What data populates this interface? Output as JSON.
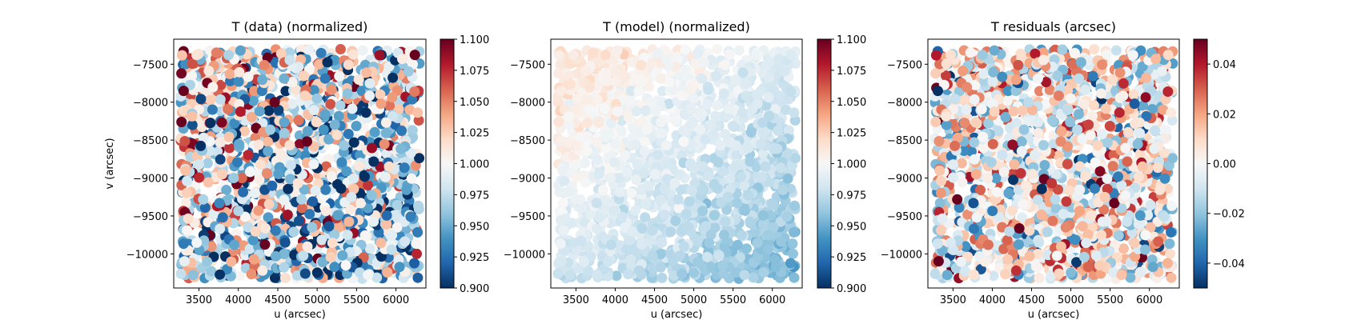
{
  "chart_data": [
    {
      "type": "scatter",
      "title": "T (data) (normalized)",
      "xlabel": "u (arcsec)",
      "ylabel": "v (arcsec)",
      "xlim": [
        3180,
        6380
      ],
      "ylim": [
        -10450,
        -7170
      ],
      "xticks": [
        3500,
        4000,
        4500,
        5000,
        5500,
        6000
      ],
      "yticks": [
        -7500,
        -8000,
        -8500,
        -9000,
        -9500,
        -10000
      ],
      "colorbar": {
        "cmap": "RdBu_r",
        "vmin": 0.9,
        "vmax": 1.1,
        "ticks": [
          "0.900",
          "0.925",
          "0.950",
          "0.975",
          "1.000",
          "1.025",
          "1.050",
          "1.075",
          "1.100"
        ]
      },
      "points": {
        "n": 1800,
        "x_range": [
          3270,
          6300
        ],
        "y_range": [
          -10330,
          -7300
        ],
        "field": "noisy",
        "pattern": "mean near 1.0 with strong scatter (most values saturate toward 0.90 or 1.10); slightly more red near top-left and more blue near bottom-right"
      }
    },
    {
      "type": "scatter",
      "title": "T (model) (normalized)",
      "xlabel": "u (arcsec)",
      "ylabel": "",
      "xlim": [
        3180,
        6380
      ],
      "ylim": [
        -10450,
        -7170
      ],
      "xticks": [
        3500,
        4000,
        4500,
        5000,
        5500,
        6000
      ],
      "yticks": [
        -7500,
        -8000,
        -8500,
        -9000,
        -9500,
        -10000
      ],
      "colorbar": {
        "cmap": "RdBu_r",
        "vmin": 0.9,
        "vmax": 1.1,
        "ticks": [
          "0.900",
          "0.925",
          "0.950",
          "0.975",
          "1.000",
          "1.025",
          "1.050",
          "1.075",
          "1.100"
        ]
      },
      "points": {
        "n": 1800,
        "x_range": [
          3270,
          6300
        ],
        "y_range": [
          -10330,
          -7300
        ],
        "field": "smooth",
        "pattern": "smooth gradient from about 1.04 at top-left to about 0.93 at bottom-right"
      }
    },
    {
      "type": "scatter",
      "title": "T residuals (arcsec)",
      "xlabel": "u (arcsec)",
      "ylabel": "",
      "xlim": [
        3180,
        6380
      ],
      "ylim": [
        -10450,
        -7170
      ],
      "xticks": [
        3500,
        4000,
        4500,
        5000,
        5500,
        6000
      ],
      "yticks": [
        -7500,
        -8000,
        -8500,
        -9000,
        -9500,
        -10000
      ],
      "colorbar": {
        "cmap": "RdBu_r",
        "vmin": -0.05,
        "vmax": 0.05,
        "ticks": [
          "−0.04",
          "−0.02",
          "0.00",
          "0.02",
          "0.04"
        ],
        "tick_values": [
          -0.04,
          -0.02,
          0.0,
          0.02,
          0.04
        ]
      },
      "points": {
        "n": 1800,
        "x_range": [
          3270,
          6300
        ],
        "y_range": [
          -10330,
          -7300
        ],
        "field": "residual",
        "pattern": "spatially random residuals between -0.05 and 0.05, no trend"
      }
    }
  ]
}
